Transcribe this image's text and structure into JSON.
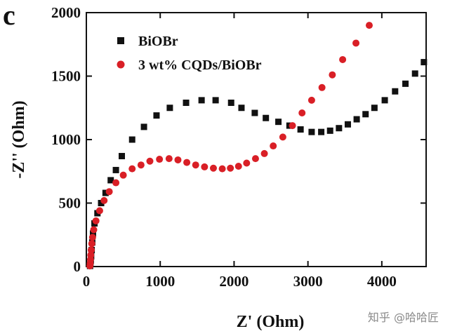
{
  "panel_label": "c",
  "watermark": "知乎 @哈哈匠",
  "chart_data": {
    "type": "scatter",
    "xlabel": "Z' (Ohm)",
    "ylabel": "-Z'' (Ohm)",
    "xlim": [
      0,
      4600
    ],
    "ylim": [
      0,
      2000
    ],
    "xticks": [
      0,
      1000,
      2000,
      3000,
      4000
    ],
    "yticks": [
      0,
      500,
      1000,
      1500,
      2000
    ],
    "legend_position": "top-left",
    "series": [
      {
        "name": "BiOBr",
        "marker": "square",
        "color": "#111111",
        "points": [
          [
            50,
            5
          ],
          [
            55,
            20
          ],
          [
            60,
            45
          ],
          [
            65,
            80
          ],
          [
            72,
            130
          ],
          [
            80,
            190
          ],
          [
            90,
            260
          ],
          [
            110,
            340
          ],
          [
            150,
            420
          ],
          [
            200,
            500
          ],
          [
            260,
            580
          ],
          [
            330,
            680
          ],
          [
            400,
            760
          ],
          [
            480,
            870
          ],
          [
            620,
            1000
          ],
          [
            780,
            1100
          ],
          [
            950,
            1190
          ],
          [
            1130,
            1250
          ],
          [
            1350,
            1290
          ],
          [
            1560,
            1310
          ],
          [
            1750,
            1310
          ],
          [
            1960,
            1290
          ],
          [
            2100,
            1250
          ],
          [
            2280,
            1210
          ],
          [
            2430,
            1170
          ],
          [
            2600,
            1140
          ],
          [
            2750,
            1110
          ],
          [
            2900,
            1080
          ],
          [
            3050,
            1060
          ],
          [
            3180,
            1060
          ],
          [
            3300,
            1070
          ],
          [
            3420,
            1090
          ],
          [
            3540,
            1120
          ],
          [
            3660,
            1160
          ],
          [
            3780,
            1200
          ],
          [
            3900,
            1250
          ],
          [
            4040,
            1310
          ],
          [
            4180,
            1380
          ],
          [
            4320,
            1440
          ],
          [
            4450,
            1520
          ],
          [
            4570,
            1610
          ]
        ]
      },
      {
        "name": "3 wt% CQDs/BiOBr",
        "marker": "circle",
        "color": "#d91f26",
        "points": [
          [
            48,
            5
          ],
          [
            52,
            25
          ],
          [
            56,
            55
          ],
          [
            60,
            90
          ],
          [
            66,
            130
          ],
          [
            74,
            180
          ],
          [
            84,
            230
          ],
          [
            100,
            290
          ],
          [
            130,
            360
          ],
          [
            180,
            440
          ],
          [
            240,
            520
          ],
          [
            310,
            590
          ],
          [
            400,
            660
          ],
          [
            500,
            720
          ],
          [
            620,
            770
          ],
          [
            740,
            800
          ],
          [
            860,
            830
          ],
          [
            990,
            845
          ],
          [
            1120,
            850
          ],
          [
            1240,
            840
          ],
          [
            1360,
            820
          ],
          [
            1480,
            800
          ],
          [
            1600,
            785
          ],
          [
            1720,
            775
          ],
          [
            1840,
            770
          ],
          [
            1950,
            775
          ],
          [
            2060,
            790
          ],
          [
            2170,
            815
          ],
          [
            2290,
            850
          ],
          [
            2410,
            890
          ],
          [
            2530,
            950
          ],
          [
            2660,
            1020
          ],
          [
            2790,
            1110
          ],
          [
            2920,
            1210
          ],
          [
            3050,
            1310
          ],
          [
            3190,
            1410
          ],
          [
            3330,
            1510
          ],
          [
            3470,
            1630
          ],
          [
            3650,
            1760
          ],
          [
            3830,
            1900
          ]
        ]
      }
    ]
  }
}
